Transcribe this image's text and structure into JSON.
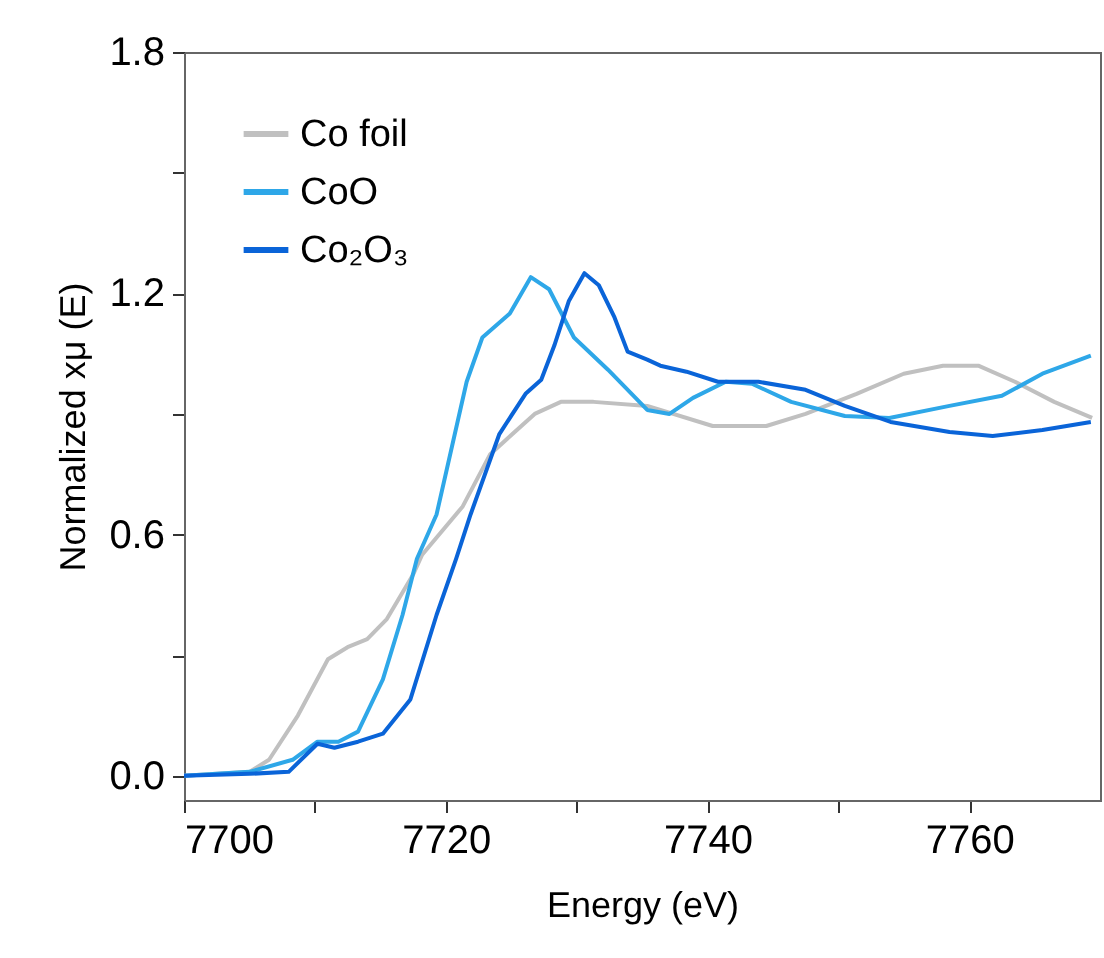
{
  "chart_data": {
    "type": "line",
    "xlabel": "Energy (eV)",
    "ylabel": "Normalized xμ (E)",
    "xlim": [
      7700,
      7770
    ],
    "ylim": [
      -0.06,
      1.8
    ],
    "xticks": [
      7700,
      {
        "value": 7710,
        "label": null
      },
      7720,
      {
        "value": 7730,
        "label": null
      },
      7740,
      {
        "value": 7750,
        "label": null
      },
      7760
    ],
    "yticks": [
      "0.0",
      {
        "value": 0.3,
        "label": null
      },
      {
        "value": 0.6,
        "label": "0.6"
      },
      {
        "value": 0.9,
        "label": null
      },
      {
        "value": 1.2,
        "label": "1.2"
      },
      {
        "value": 1.5,
        "label": null
      },
      {
        "value": 1.8,
        "label": "1.8"
      }
    ],
    "grid": false,
    "legend": "top left",
    "marker": "none",
    "line_style": "solid",
    "series": [
      {
        "name": "Co foil",
        "color": "#c0c0c0",
        "x": [
          7700,
          7705,
          7706.5,
          7708.7,
          7711,
          7712.5,
          7714,
          7715.5,
          7717.5,
          7718.2,
          7721.3,
          7723.4,
          7726.8,
          7728.8,
          7731.3,
          7735.4,
          7740.4,
          7744.5,
          7747.5,
          7751.4,
          7755,
          7758,
          7760.7,
          7763.5,
          7766.5,
          7769.4
        ],
        "values": [
          0.0,
          0.01,
          0.04,
          0.15,
          0.29,
          0.32,
          0.34,
          0.39,
          0.5,
          0.55,
          0.67,
          0.8,
          0.9,
          0.93,
          0.93,
          0.92,
          0.87,
          0.87,
          0.9,
          0.95,
          1.0,
          1.02,
          1.02,
          0.98,
          0.93,
          0.89
        ]
      },
      {
        "name": "CoO",
        "color": "#2ea7e8",
        "x": [
          7700,
          7705,
          7708.3,
          7710.2,
          7711.8,
          7713.3,
          7715.2,
          7716.7,
          7717.8,
          7719.3,
          7721.6,
          7722.8,
          7724.9,
          7726.5,
          7727.9,
          7729.8,
          7732.4,
          7735.4,
          7737.1,
          7738.9,
          7741.4,
          7743.4,
          7746.4,
          7750.5,
          7753.9,
          7758.5,
          7762.5,
          7765.6,
          7769.3
        ],
        "values": [
          0.0,
          0.01,
          0.04,
          0.085,
          0.085,
          0.11,
          0.24,
          0.4,
          0.54,
          0.65,
          0.98,
          1.09,
          1.15,
          1.24,
          1.21,
          1.09,
          1.01,
          0.91,
          0.9,
          0.94,
          0.98,
          0.975,
          0.93,
          0.895,
          0.89,
          0.92,
          0.945,
          1.0,
          1.045
        ]
      },
      {
        "name": "Co₂O₃",
        "color": "#0a64d8",
        "x": [
          7700,
          7705,
          7708,
          7710.2,
          7711.5,
          7713.3,
          7715.2,
          7717.3,
          7719.3,
          7720.8,
          7721.9,
          7724.1,
          7726.1,
          7727.3,
          7728.3,
          7729.4,
          7730.6,
          7731.7,
          7732.9,
          7733.9,
          7735.4,
          7736.4,
          7738.4,
          7740.8,
          7743.9,
          7747.5,
          7750.5,
          7754,
          7758.5,
          7761.8,
          7765.6,
          7769.3
        ],
        "values": [
          0.0,
          0.005,
          0.01,
          0.08,
          0.07,
          0.085,
          0.105,
          0.19,
          0.4,
          0.54,
          0.65,
          0.85,
          0.95,
          0.985,
          1.07,
          1.18,
          1.25,
          1.22,
          1.14,
          1.055,
          1.035,
          1.02,
          1.005,
          0.98,
          0.98,
          0.96,
          0.92,
          0.88,
          0.855,
          0.845,
          0.86,
          0.88
        ]
      }
    ]
  }
}
